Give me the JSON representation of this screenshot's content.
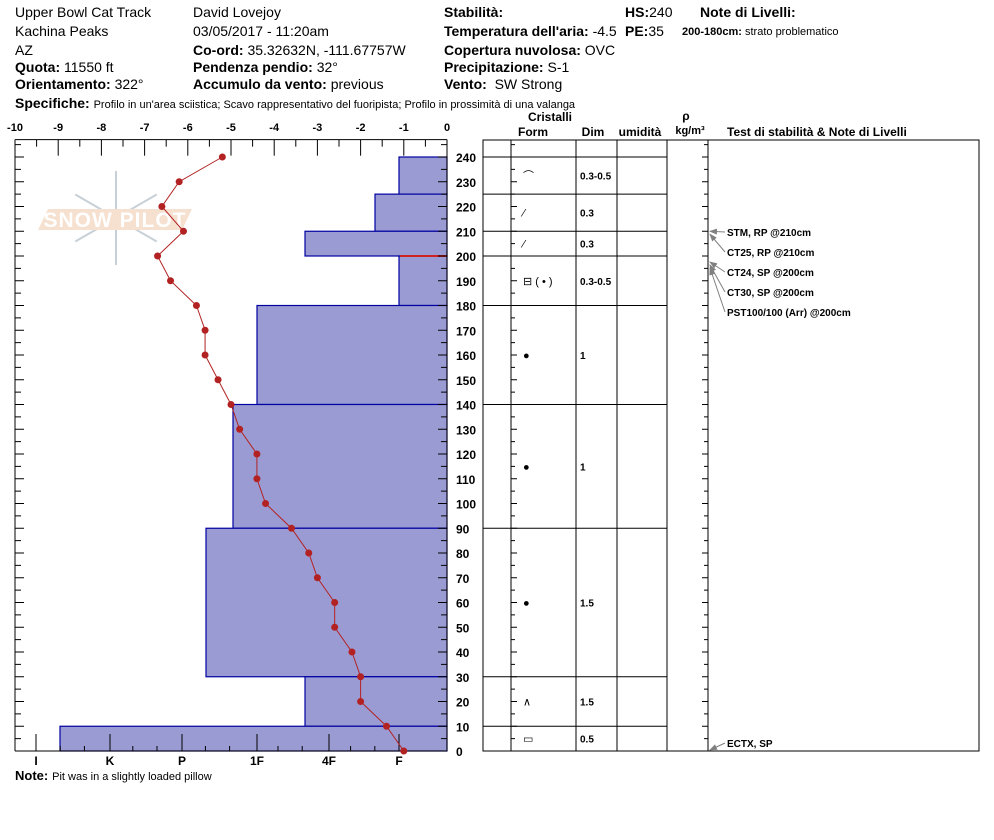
{
  "header": {
    "location": "Upper Bowl Cat Track",
    "range": "Kachina Peaks",
    "state": "AZ",
    "elevation_label": "Quota:",
    "elevation": "11550 ft",
    "aspect_label": "Orientamento:",
    "aspect": "322°",
    "observer": "David Lovejoy",
    "datetime": "03/05/2017 - 11:20am",
    "coord_label": "Co-ord:",
    "coord": "35.32632N, -111.67757W",
    "slope_label": "Pendenza pendio:",
    "slope": "32°",
    "wind_loading_label": "Accumulo da vento:",
    "wind_loading": "previous",
    "stability_label": "Stabilità:",
    "stability": "",
    "air_temp_label": "Temperatura dell'aria:",
    "air_temp": "-4.5",
    "sky_label": "Copertura nuvolosa:",
    "sky": "OVC",
    "precip_label": "Precipitazione:",
    "precip": "S-1",
    "wind_label": "Vento:",
    "wind": "SW Strong",
    "hs_label": "HS:",
    "hs": "240",
    "pe_label": "PE:",
    "pe": "35",
    "layer_notes_label": "Note di Livelli:",
    "layer_note_range": "200-180cm:",
    "layer_note_text": "strato problematico",
    "specifics_label": "Specifiche:",
    "specifics": "Profilo in un'area sciistica; Scavo rappresentativo del fuoripista; Profilo in prossimità di una valanga",
    "note_label": "Note:",
    "note": "Pit was in a slightly loaded pillow"
  },
  "logo_text": "SNOW PILOT",
  "table_headers": {
    "crystals": "Cristalli",
    "form": "Form",
    "size": "Dim",
    "moisture": "umidità",
    "density_symbol": "ρ",
    "density_unit": "kg/m³",
    "tests": "Test di stabilità & Note di Livelli"
  },
  "colors": {
    "hardness_fill": "#9b9bd4",
    "hardness_stroke": "#0000a0",
    "temp_line": "#b22222",
    "problem_layer": "#cc2222",
    "arrow": "#808080"
  },
  "chart_data": {
    "type": "line",
    "title": "",
    "x_temp_ticks": [
      "-10",
      "-9",
      "-8",
      "-7",
      "-6",
      "-5",
      "-4",
      "-3",
      "-2",
      "-1",
      "0"
    ],
    "xlim_temp": [
      -10,
      0
    ],
    "hardness_ticks": [
      "I",
      "K",
      "P",
      "1F",
      "4F",
      "F"
    ],
    "ylim": [
      0,
      247
    ],
    "y_ticks": [
      "0",
      "10",
      "20",
      "30",
      "40",
      "50",
      "60",
      "70",
      "80",
      "90",
      "100",
      "110",
      "120",
      "130",
      "140",
      "150",
      "160",
      "170",
      "180",
      "190",
      "200",
      "210",
      "220",
      "230",
      "240"
    ],
    "temperature_profile": {
      "depth": [
        240,
        230,
        220,
        210,
        200,
        190,
        180,
        170,
        160,
        150,
        140,
        130,
        120,
        110,
        100,
        90,
        80,
        70,
        60,
        50,
        40,
        30,
        20,
        10,
        0
      ],
      "temp": [
        -5.2,
        -6.2,
        -6.6,
        -6.1,
        -6.7,
        -6.4,
        -5.8,
        -5.6,
        -5.6,
        -5.3,
        -5.0,
        -4.8,
        -4.4,
        -4.4,
        -4.2,
        -3.6,
        -3.2,
        -3.0,
        -2.6,
        -2.6,
        -2.2,
        -2.0,
        -2.0,
        -1.4,
        -1.0
      ]
    },
    "problem_layer_depth": 200,
    "layers": [
      {
        "top": 240,
        "bottom": 225,
        "hardness": "F",
        "form": "⌒",
        "size": "0.3-0.5"
      },
      {
        "top": 225,
        "bottom": 210,
        "hardness": "F+",
        "form": "⁄",
        "size": "0.3"
      },
      {
        "top": 210,
        "bottom": 200,
        "hardness": "4F+",
        "form": "⁄",
        "size": "0.3"
      },
      {
        "top": 200,
        "bottom": 180,
        "hardness": "F",
        "form": "⊟ ( • )",
        "size": "0.3-0.5"
      },
      {
        "top": 180,
        "bottom": 140,
        "hardness": "1F",
        "form": "●",
        "size": "1"
      },
      {
        "top": 140,
        "bottom": 90,
        "hardness": "1F+",
        "form": "●",
        "size": "1"
      },
      {
        "top": 90,
        "bottom": 30,
        "hardness": "P-",
        "form": "●",
        "size": "1.5"
      },
      {
        "top": 30,
        "bottom": 10,
        "hardness": "4F+",
        "form": "∧",
        "size": "1.5"
      },
      {
        "top": 10,
        "bottom": 0,
        "hardness": "I-",
        "form": "▭",
        "size": "0.5"
      }
    ],
    "stability_tests": [
      {
        "label": "STM, RP @210cm",
        "depth": 210
      },
      {
        "label": "CT25, RP @210cm",
        "depth": 210
      },
      {
        "label": "CT24, SP @200cm",
        "depth": 200
      },
      {
        "label": "CT30, SP @200cm",
        "depth": 200
      },
      {
        "label": "PST100/100 (Arr) @200cm",
        "depth": 200
      },
      {
        "label": "ECTX, SP",
        "depth": 0
      }
    ]
  }
}
